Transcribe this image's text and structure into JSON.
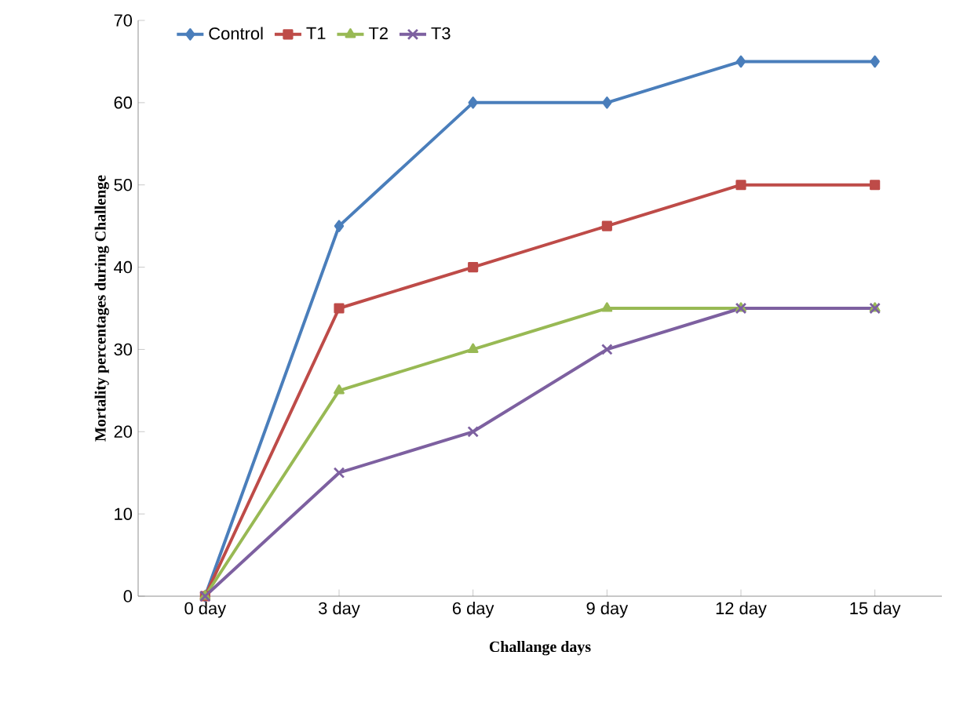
{
  "chart_data": {
    "type": "line",
    "xlabel": "Challange days",
    "ylabel": "Mortality  percentages during Challenge",
    "categories": [
      "0 day",
      "3 day",
      "6 day",
      "9 day",
      "12 day",
      "15 day"
    ],
    "series": [
      {
        "name": "Control",
        "color": "#4a7ebb",
        "marker": "diamond",
        "values": [
          0,
          45,
          60,
          60,
          65,
          65
        ]
      },
      {
        "name": "T1",
        "color": "#be4b48",
        "marker": "square",
        "values": [
          0,
          35,
          40,
          45,
          50,
          50
        ]
      },
      {
        "name": "T2",
        "color": "#98b954",
        "marker": "triangle",
        "values": [
          0,
          25,
          30,
          35,
          35,
          35
        ]
      },
      {
        "name": "T3",
        "color": "#7d60a0",
        "marker": "cross",
        "values": [
          0,
          15,
          20,
          30,
          35,
          35
        ]
      }
    ],
    "ylim": [
      0,
      70
    ],
    "yticks": [
      0,
      10,
      20,
      30,
      40,
      50,
      60,
      70
    ],
    "grid": false,
    "legend": "top left",
    "line_style": "solid"
  }
}
